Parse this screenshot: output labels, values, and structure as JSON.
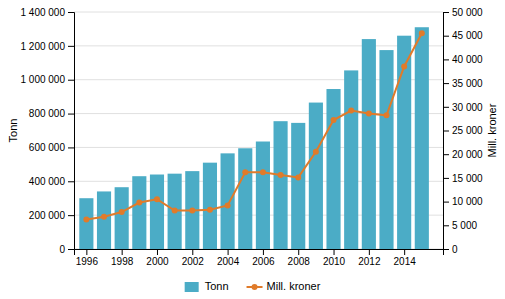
{
  "chart_data": {
    "type": "bar",
    "x": [
      1996,
      1997,
      1998,
      1999,
      2000,
      2001,
      2002,
      2003,
      2004,
      2005,
      2006,
      2007,
      2008,
      2009,
      2010,
      2011,
      2012,
      2013,
      2014,
      2015
    ],
    "series": [
      {
        "name": "Tonn",
        "type": "bar",
        "color": "#4bacc6",
        "values": [
          300000,
          340000,
          365000,
          430000,
          440000,
          445000,
          460000,
          510000,
          565000,
          595000,
          635000,
          755000,
          745000,
          865000,
          945000,
          1055000,
          1240000,
          1175000,
          1260000,
          1310000
        ]
      },
      {
        "name": "Mill. kroner",
        "type": "line",
        "axis": "y2",
        "color": "#e07b2a",
        "marker": "circle",
        "values": [
          6200,
          6800,
          7800,
          9800,
          10500,
          8100,
          8100,
          8300,
          9200,
          16200,
          16200,
          15600,
          15100,
          20500,
          27200,
          29200,
          28600,
          28200,
          38500,
          45500
        ]
      }
    ],
    "ylabel": "Tonn",
    "y2label": "Mill. kroner",
    "xlim": [
      1995.3,
      2016.2
    ],
    "xticks": [
      1996,
      1998,
      2000,
      2002,
      2004,
      2006,
      2008,
      2010,
      2012,
      2014
    ],
    "ylim": [
      0,
      1400000
    ],
    "yticks": [
      0,
      {
        "value": 200000,
        "label": "200 000"
      },
      {
        "value": 400000,
        "label": "400 000"
      },
      {
        "value": 600000,
        "label": "600 000"
      },
      {
        "value": 800000,
        "label": "800 000"
      },
      {
        "value": 1000000,
        "label": "1 000 000"
      },
      {
        "value": 1200000,
        "label": "1 200 000"
      },
      {
        "value": 1400000,
        "label": "1 400 000"
      }
    ],
    "y2lim": [
      0,
      50000
    ],
    "y2ticks": [
      0,
      {
        "value": 5000,
        "label": "5 000"
      },
      {
        "value": 10000,
        "label": "10 000"
      },
      {
        "value": 15000,
        "label": "15 000"
      },
      {
        "value": 20000,
        "label": "20 000"
      },
      {
        "value": 25000,
        "label": "25 000"
      },
      {
        "value": 30000,
        "label": "30 000"
      },
      {
        "value": 35000,
        "label": "35 000"
      },
      {
        "value": 40000,
        "label": "40 000"
      },
      {
        "value": 45000,
        "label": "45 000"
      },
      {
        "value": 50000,
        "label": "50 000"
      }
    ],
    "grid": true,
    "legend": "bottom"
  }
}
